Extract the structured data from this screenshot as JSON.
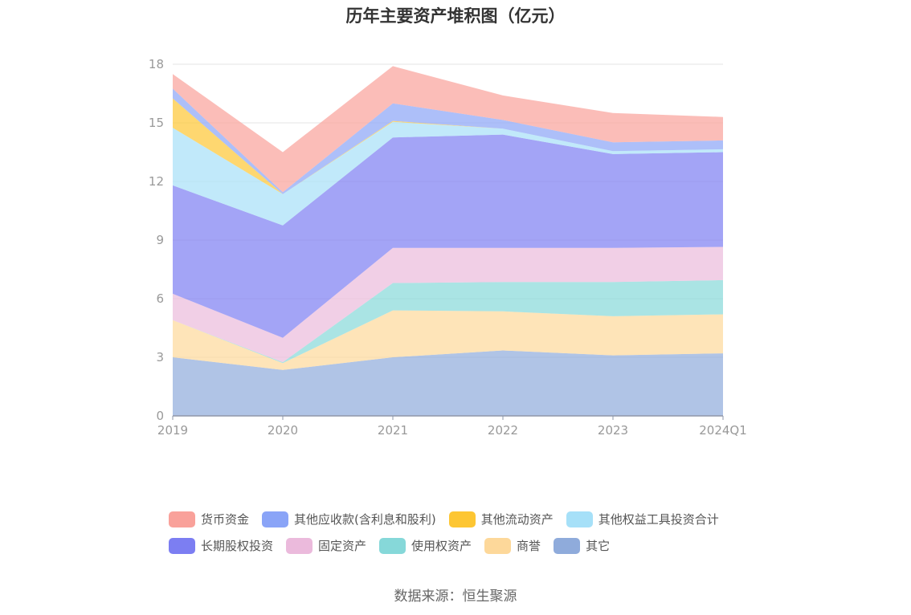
{
  "chart_data": {
    "type": "area",
    "stacked": true,
    "title": "历年主要资产堆积图（亿元）",
    "categories": [
      "2019",
      "2020",
      "2021",
      "2022",
      "2023",
      "2024Q1"
    ],
    "ylim": [
      0,
      18
    ],
    "yticks": [
      "0",
      "3",
      "6",
      "9",
      "12",
      "15",
      "18"
    ],
    "grid": true,
    "legend_position": "bottom",
    "series": [
      {
        "name": "其它",
        "color": "#8fabdb",
        "values": [
          3.0,
          2.35,
          3.0,
          3.35,
          3.1,
          3.2
        ]
      },
      {
        "name": "商誉",
        "color": "#fdd89a",
        "values": [
          1.9,
          0.35,
          2.4,
          2.0,
          2.0,
          2.0
        ]
      },
      {
        "name": "使用权资产",
        "color": "#86d8d9",
        "values": [
          0.0,
          0.05,
          1.4,
          1.5,
          1.75,
          1.75
        ]
      },
      {
        "name": "固定资产",
        "color": "#ebbadc",
        "values": [
          1.35,
          1.25,
          1.8,
          1.75,
          1.75,
          1.7
        ]
      },
      {
        "name": "长期股权投资",
        "color": "#7c7ef2",
        "values": [
          5.55,
          5.75,
          5.65,
          5.8,
          4.8,
          4.85
        ]
      },
      {
        "name": "其他权益工具投资合计",
        "color": "#a6e0f8",
        "values": [
          2.95,
          1.6,
          0.8,
          0.3,
          0.15,
          0.15
        ]
      },
      {
        "name": "其他流动资产",
        "color": "#fdc633",
        "values": [
          1.5,
          0.0,
          0.05,
          0.0,
          0.0,
          0.0
        ]
      },
      {
        "name": "其他应收款(含利息和股利)",
        "color": "#8aa4f7",
        "values": [
          0.5,
          0.1,
          0.9,
          0.45,
          0.45,
          0.45
        ]
      },
      {
        "name": "货币资金",
        "color": "#f9a19a",
        "values": [
          0.75,
          2.05,
          1.9,
          1.25,
          1.5,
          1.2
        ]
      }
    ]
  },
  "legend": {
    "rows": [
      [
        "货币资金",
        "其他应收款(含利息和股利)",
        "其他流动资产",
        "其他权益工具投资合计"
      ],
      [
        "长期股权投资",
        "固定资产",
        "使用权资产",
        "商誉",
        "其它"
      ]
    ]
  },
  "source_text": "数据来源：恒生聚源"
}
